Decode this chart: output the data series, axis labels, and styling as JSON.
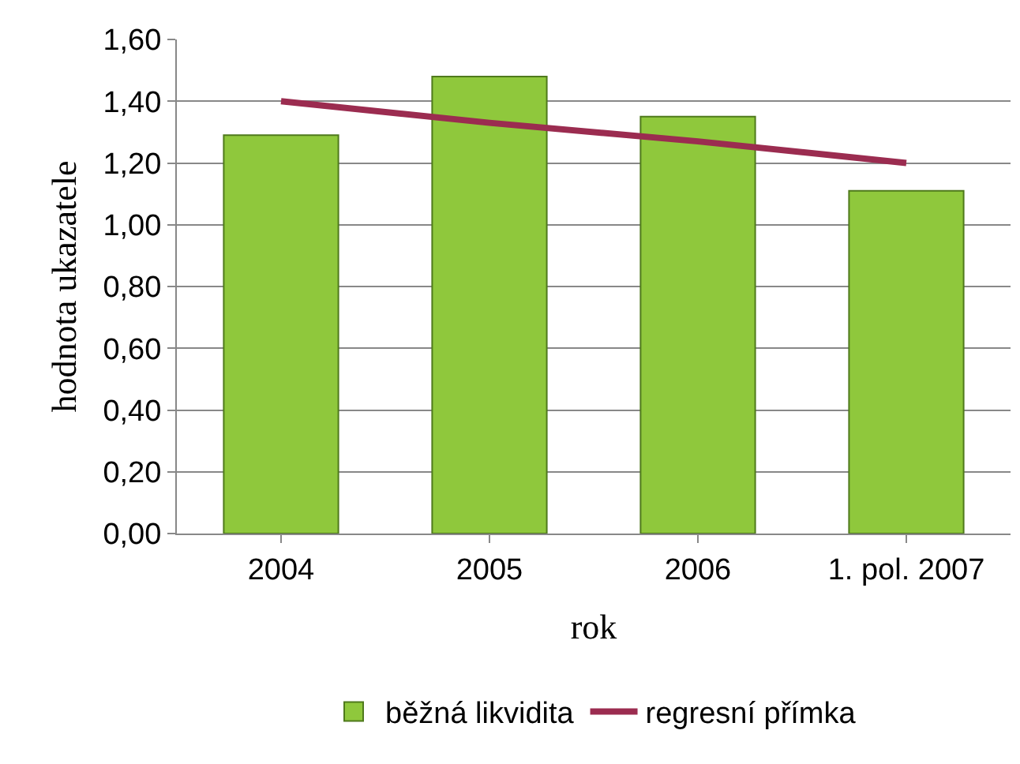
{
  "chart_data": {
    "type": "bar",
    "xlabel": "rok",
    "ylabel": "hodnota ukazatele",
    "categories": [
      "2004",
      "2005",
      "2006",
      "1. pol. 2007"
    ],
    "series": [
      {
        "name": "běžná likvidita",
        "color": "#8fc83c",
        "values": [
          1.29,
          1.48,
          1.35,
          1.11
        ]
      },
      {
        "name": "regresní přímka",
        "type": "line",
        "color": "#9b2c50",
        "values": [
          1.4,
          1.33,
          1.27,
          1.2
        ]
      }
    ],
    "ylim": [
      0,
      1.6
    ],
    "yticks": [
      {
        "value": 0,
        "label": "0,00"
      },
      {
        "value": 0.2,
        "label": "0,20"
      },
      {
        "value": 0.4,
        "label": "0,40"
      },
      {
        "value": 0.6,
        "label": "0,60"
      },
      {
        "value": 0.8,
        "label": "0,80"
      },
      {
        "value": 1,
        "label": "1,00"
      },
      {
        "value": 1.2,
        "label": "1,20"
      },
      {
        "value": 1.4,
        "label": "1,40"
      },
      {
        "value": 1.6,
        "label": "1,60"
      }
    ],
    "grid": "y",
    "legend": "bottom"
  }
}
